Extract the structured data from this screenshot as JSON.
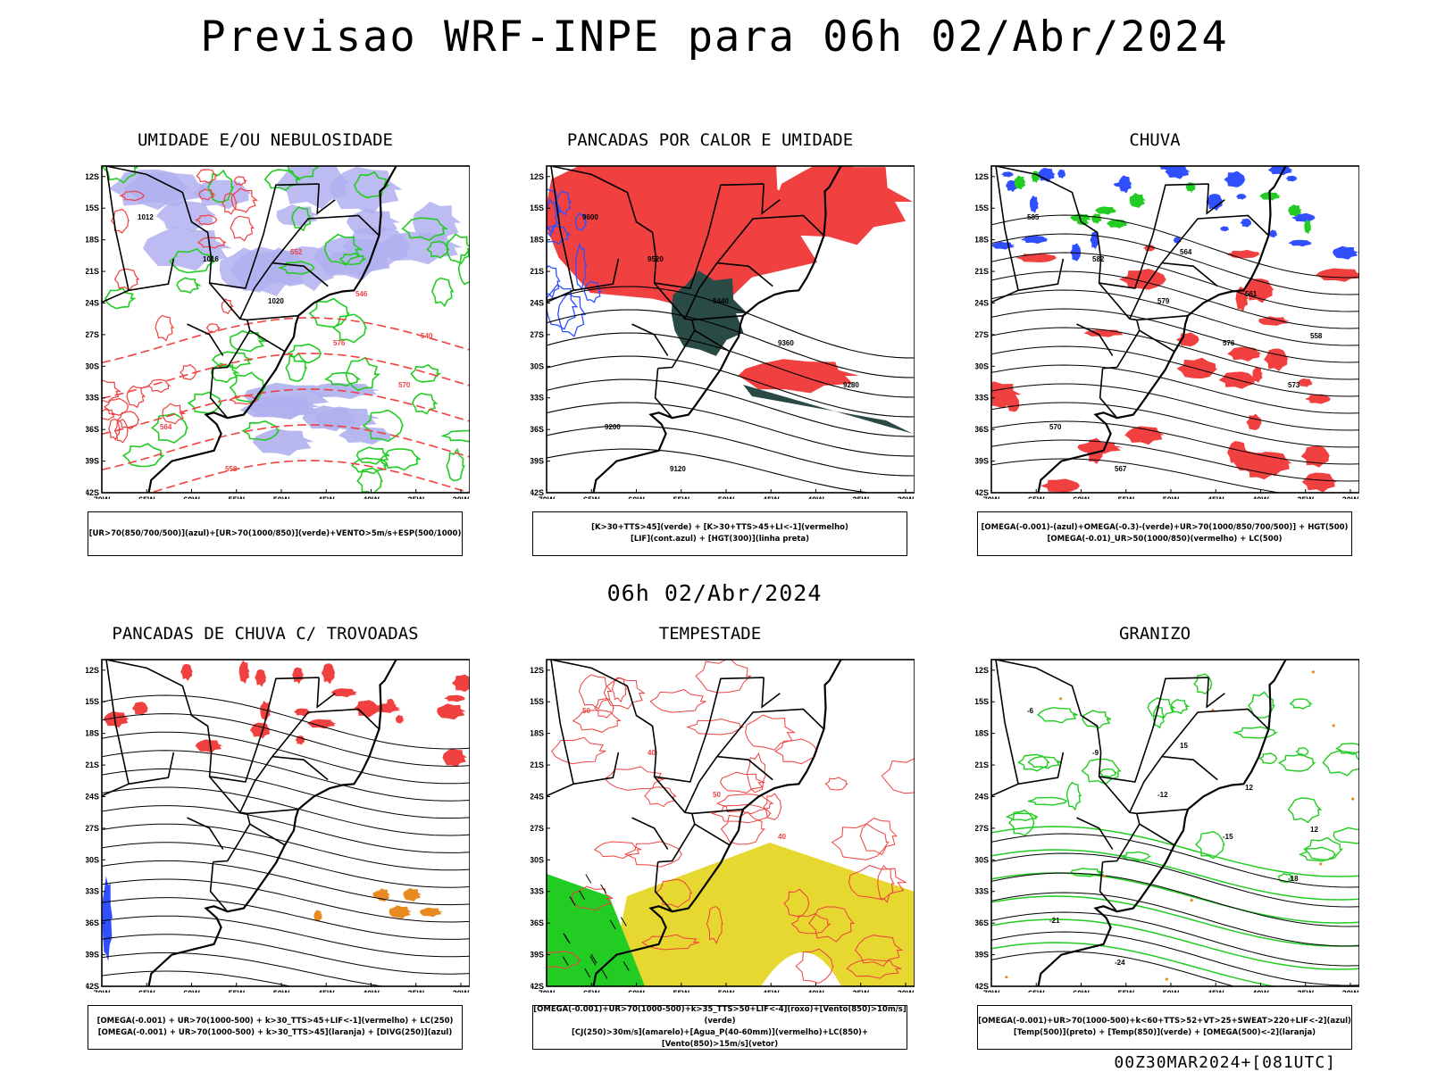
{
  "main_title": "Previsao WRF-INPE  para 06h 02/Abr/2024",
  "mid_title": "06h 02/Abr/2024",
  "footer": "00Z30MAR2024+[081UTC]",
  "axis": {
    "lat_labels": [
      "12S",
      "15S",
      "18S",
      "21S",
      "24S",
      "27S",
      "30S",
      "33S",
      "36S",
      "39S",
      "42S"
    ],
    "lon_labels": [
      "70W",
      "65W",
      "60W",
      "55W",
      "50W",
      "45W",
      "40W",
      "35W",
      "30W"
    ]
  },
  "panels": [
    {
      "id": "umidade",
      "title": "UMIDADE E/OU NEBULOSIDADE",
      "legend": [
        "[UR>70(850/700/500)](azul)+[UR>70(1000/850)](verde)+VENTO>5m/s+ESP(500/1000)"
      ],
      "labels": [
        "1012",
        "1016",
        "1020",
        "576",
        "570",
        "564",
        "558",
        "552",
        "546",
        "540"
      ]
    },
    {
      "id": "pancadas-calor",
      "title": "PANCADAS POR CALOR E UMIDADE",
      "legend": [
        "[K>30+TTS>45](verde) + [K>30+TTS>45+LI<-1](vermelho)",
        "[LIF](cont.azul) + [HGT(300)](linha preta)"
      ],
      "labels": [
        "9600",
        "9520",
        "9440",
        "9360",
        "9280",
        "9200",
        "9120"
      ]
    },
    {
      "id": "chuva",
      "title": "CHUVA",
      "legend": [
        "[OMEGA(-0.001)-(azul)+OMEGA(-0.3)-(verde)+UR>70(1000/850/700/500)] + HGT(500)",
        "[OMEGA(-0.01)_UR>50(1000/850)(vermelho) + LC(500)"
      ],
      "labels": [
        "585",
        "582",
        "579",
        "576",
        "573",
        "570",
        "567",
        "564",
        "561",
        "558"
      ]
    },
    {
      "id": "trovoadas",
      "title": "PANCADAS DE CHUVA C/ TROVOADAS",
      "legend": [
        "[OMEGA(-0.001) + UR>70(1000-500) + k>30_TTS>45+LIF<-1](vermelho) + LC(250)",
        "[OMEGA(-0.001) + UR>70(1000-500) + k>30_TTS>45](laranja) + [DIVG(250)](azul)"
      ],
      "labels": []
    },
    {
      "id": "tempestade",
      "title": "TEMPESTADE",
      "legend": [
        "[OMEGA(-0.001)+UR>70(1000-500)+k>35_TTS>50+LIF<-4](roxo)+[Vento(850)>10m/s](verde)",
        "[CJ(250)>30m/s](amarelo)+[Agua_P(40-60mm)](vermelho)+LC(850)+[Vento(850)>15m/s](vetor)"
      ],
      "labels": [
        "50",
        "40",
        "50",
        "40"
      ]
    },
    {
      "id": "granizo",
      "title": "GRANIZO",
      "legend": [
        "[OMEGA(-0.001)+UR>70(1000-500)+k<60+TTS>52+VT>25+SWEAT>220+LIF<-2](azul)",
        "[Temp(500)](preto) + [Temp(850)](verde) + [OMEGA(500)<-2](laranja)"
      ],
      "labels": [
        "-6",
        "-9",
        "-12",
        "-15",
        "-18",
        "-21",
        "-24",
        "15",
        "12",
        "12"
      ]
    }
  ],
  "colors": {
    "red": "#f04040",
    "blue": "#3050ff",
    "lavender": "#b0b0f0",
    "green": "#22cc22",
    "dark_teal": "#2a4a46",
    "yellow": "#e6d830",
    "orange": "#e88a20",
    "black": "#000000"
  }
}
